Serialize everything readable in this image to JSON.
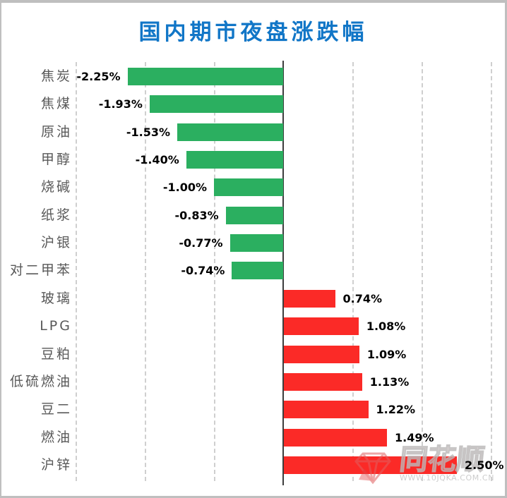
{
  "title": "国内期市夜盘涨跌幅",
  "title_color": "#1176C7",
  "watermark": {
    "brand": "同花顺",
    "url": "WWW.10JQKA.COM.CN",
    "logo": "tonghuashun-diamond-logo"
  },
  "chart_data": {
    "type": "bar",
    "orientation": "horizontal",
    "title": "国内期市夜盘涨跌幅",
    "categories": [
      "焦炭",
      "焦煤",
      "原油",
      "甲醇",
      "烧碱",
      "纸浆",
      "沪银",
      "对二甲苯",
      "玻璃",
      "LPG",
      "豆粕",
      "低硫燃油",
      "豆二",
      "燃油",
      "沪锌"
    ],
    "values": [
      -2.25,
      -1.93,
      -1.53,
      -1.4,
      -1.0,
      -0.83,
      -0.77,
      -0.74,
      0.74,
      1.08,
      1.09,
      1.13,
      1.22,
      1.49,
      2.5
    ],
    "value_labels": [
      "-2.25%",
      "-1.93%",
      "-1.53%",
      "-1.40%",
      "-1.00%",
      "-0.83%",
      "-0.77%",
      "-0.74%",
      "0.74%",
      "1.08%",
      "1.09%",
      "1.13%",
      "1.22%",
      "1.49%",
      "2.50%"
    ],
    "xlim": [
      -3,
      3.25
    ],
    "grid_step": 1,
    "grid": "vertical-dashed",
    "legend": "none",
    "xlabel": "",
    "ylabel": "",
    "negative_color": "#2BAF60",
    "positive_color": "#FB2A27",
    "axis_color": "#3D3D3D",
    "category_label_color": "#595959",
    "value_label_color": "#000000"
  }
}
